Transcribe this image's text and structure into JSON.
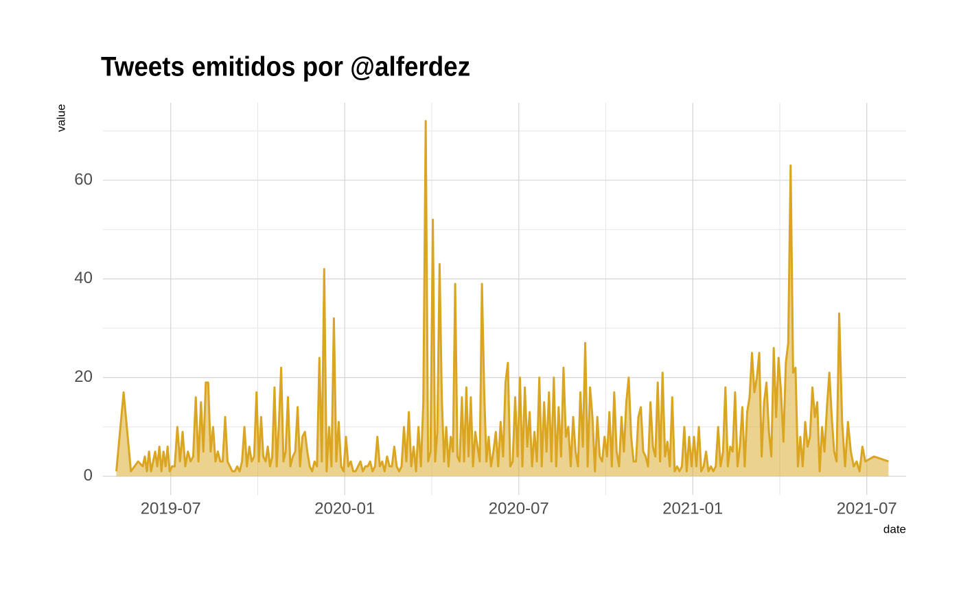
{
  "chart_data": {
    "type": "area",
    "title": "Tweets emitidos por @alferdez",
    "xlabel": "date",
    "ylabel": "value",
    "x": [
      "2019-05",
      "2019-05",
      "2019-05",
      "2019-05",
      "2019-06",
      "2019-06",
      "2019-06",
      "2019-06",
      "2019-06",
      "2019-06",
      "2019-06",
      "2019-06",
      "2019-06",
      "2019-06",
      "2019-06",
      "2019-06",
      "2019-06",
      "2019-06",
      "2019-07",
      "2019-07",
      "2019-07",
      "2019-07",
      "2019-07",
      "2019-07",
      "2019-07",
      "2019-07",
      "2019-07",
      "2019-07",
      "2019-07",
      "2019-08",
      "2019-08",
      "2019-08",
      "2019-08",
      "2019-08",
      "2019-08",
      "2019-08",
      "2019-08",
      "2019-08",
      "2019-08",
      "2019-08",
      "2019-08",
      "2019-09",
      "2019-09",
      "2019-09",
      "2019-09",
      "2019-09",
      "2019-09",
      "2019-09",
      "2019-09",
      "2019-09",
      "2019-09",
      "2019-09",
      "2019-09",
      "2019-10",
      "2019-10",
      "2019-10",
      "2019-10",
      "2019-10",
      "2019-10",
      "2019-10",
      "2019-10",
      "2019-10",
      "2019-10",
      "2019-10",
      "2019-10",
      "2019-10",
      "2019-11",
      "2019-11",
      "2019-11",
      "2019-11",
      "2019-11",
      "2019-11",
      "2019-11",
      "2019-11",
      "2019-11",
      "2019-11",
      "2019-11",
      "2019-11",
      "2019-12",
      "2019-12",
      "2019-12",
      "2019-12",
      "2019-12",
      "2019-12",
      "2019-12",
      "2019-12",
      "2019-12",
      "2019-12",
      "2019-12",
      "2019-12",
      "2020-01",
      "2020-01",
      "2020-01",
      "2020-01",
      "2020-01",
      "2020-01",
      "2020-01",
      "2020-01",
      "2020-01",
      "2020-01",
      "2020-01",
      "2020-01",
      "2020-02",
      "2020-02",
      "2020-02",
      "2020-02",
      "2020-02",
      "2020-02",
      "2020-02",
      "2020-02",
      "2020-02",
      "2020-02",
      "2020-02",
      "2020-02",
      "2020-03",
      "2020-03",
      "2020-03",
      "2020-03",
      "2020-03",
      "2020-03",
      "2020-03",
      "2020-03",
      "2020-03",
      "2020-03",
      "2020-03",
      "2020-03",
      "2020-04",
      "2020-04",
      "2020-04",
      "2020-04",
      "2020-04",
      "2020-04",
      "2020-04",
      "2020-04",
      "2020-04",
      "2020-04",
      "2020-04",
      "2020-04",
      "2020-04",
      "2020-05",
      "2020-05",
      "2020-05",
      "2020-05",
      "2020-05",
      "2020-05",
      "2020-05",
      "2020-05",
      "2020-05",
      "2020-05",
      "2020-05",
      "2020-05",
      "2020-05",
      "2020-06",
      "2020-06",
      "2020-06",
      "2020-06",
      "2020-06",
      "2020-06",
      "2020-06",
      "2020-06",
      "2020-06",
      "2020-06",
      "2020-06",
      "2020-06",
      "2020-07",
      "2020-07",
      "2020-07",
      "2020-07",
      "2020-07",
      "2020-07",
      "2020-07",
      "2020-07",
      "2020-07",
      "2020-07",
      "2020-07",
      "2020-07",
      "2020-08",
      "2020-08",
      "2020-08",
      "2020-08",
      "2020-08",
      "2020-08",
      "2020-08",
      "2020-08",
      "2020-08",
      "2020-08",
      "2020-08",
      "2020-08",
      "2020-09",
      "2020-09",
      "2020-09",
      "2020-09",
      "2020-09",
      "2020-09",
      "2020-09",
      "2020-09",
      "2020-09",
      "2020-09",
      "2020-09",
      "2020-09",
      "2020-10",
      "2020-10",
      "2020-10",
      "2020-10",
      "2020-10",
      "2020-10",
      "2020-10",
      "2020-10",
      "2020-10",
      "2020-10",
      "2020-10",
      "2020-10",
      "2020-11",
      "2020-11",
      "2020-11",
      "2020-11",
      "2020-11",
      "2020-11",
      "2020-11",
      "2020-11",
      "2020-11",
      "2020-11",
      "2020-11",
      "2020-11",
      "2020-12",
      "2020-12",
      "2020-12",
      "2020-12",
      "2020-12",
      "2020-12",
      "2020-12",
      "2020-12",
      "2020-12",
      "2020-12",
      "2020-12",
      "2020-12",
      "2021-01",
      "2021-01",
      "2021-01",
      "2021-01",
      "2021-01",
      "2021-01",
      "2021-01",
      "2021-01",
      "2021-01",
      "2021-01",
      "2021-01",
      "2021-01",
      "2021-02",
      "2021-02",
      "2021-02",
      "2021-02",
      "2021-02",
      "2021-02",
      "2021-02",
      "2021-02",
      "2021-02",
      "2021-02",
      "2021-02",
      "2021-02",
      "2021-03",
      "2021-03",
      "2021-03",
      "2021-03",
      "2021-03",
      "2021-03",
      "2021-03",
      "2021-03",
      "2021-03",
      "2021-03",
      "2021-03",
      "2021-03",
      "2021-04",
      "2021-04",
      "2021-04",
      "2021-04",
      "2021-04",
      "2021-04",
      "2021-04",
      "2021-04",
      "2021-04",
      "2021-04",
      "2021-04",
      "2021-04",
      "2021-05",
      "2021-05",
      "2021-05",
      "2021-05",
      "2021-05",
      "2021-05",
      "2021-05",
      "2021-05",
      "2021-05",
      "2021-05",
      "2021-05",
      "2021-05",
      "2021-06",
      "2021-06",
      "2021-06",
      "2021-06",
      "2021-06",
      "2021-06",
      "2021-06",
      "2021-06",
      "2021-06",
      "2021-06",
      "2021-07",
      "2021-07"
    ],
    "series": [
      {
        "name": "value",
        "color": "#DAA520",
        "values": [
          1,
          17,
          1,
          3,
          2,
          4,
          1,
          5,
          1,
          3,
          5,
          2,
          6,
          1,
          5,
          2,
          6,
          1,
          2,
          2,
          10,
          3,
          9,
          2,
          5,
          3,
          4,
          16,
          3,
          15,
          5,
          19,
          19,
          5,
          10,
          3,
          5,
          3,
          3,
          12,
          3,
          2,
          1,
          1,
          2,
          1,
          3,
          10,
          2,
          6,
          3,
          4,
          17,
          3,
          12,
          4,
          3,
          6,
          2,
          4,
          18,
          2,
          11,
          22,
          3,
          5,
          16,
          2,
          4,
          5,
          14,
          2,
          8,
          9,
          5,
          2,
          1,
          3,
          2,
          24,
          3,
          42,
          1,
          10,
          2,
          32,
          3,
          11,
          2,
          1,
          8,
          2,
          3,
          1,
          1,
          2,
          3,
          1,
          2,
          2,
          3,
          1,
          2,
          8,
          2,
          3,
          1,
          4,
          2,
          2,
          6,
          2,
          1,
          2,
          10,
          3,
          13,
          2,
          6,
          1,
          10,
          2,
          15,
          72,
          3,
          5,
          52,
          3,
          9,
          43,
          16,
          3,
          10,
          2,
          8,
          5,
          39,
          4,
          3,
          16,
          3,
          18,
          4,
          16,
          2,
          9,
          6,
          3,
          39,
          17,
          3,
          8,
          2,
          5,
          9,
          2,
          11,
          4,
          19,
          23,
          2,
          3,
          16,
          4,
          20,
          2,
          18,
          6,
          13,
          2,
          9,
          3,
          20,
          2,
          15,
          5,
          17,
          3,
          20,
          2,
          14,
          4,
          22,
          8,
          10,
          2,
          12,
          5,
          2,
          17,
          6,
          27,
          2,
          18,
          12,
          1,
          12,
          4,
          3,
          8,
          4,
          13,
          2,
          17,
          5,
          2,
          12,
          5,
          15,
          20,
          8,
          3,
          3,
          12,
          14,
          5,
          4,
          2,
          15,
          6,
          4,
          19,
          3,
          21,
          4,
          7,
          2,
          16,
          1,
          2,
          1,
          2,
          10,
          1,
          8,
          2,
          8,
          2,
          10,
          1,
          2,
          5,
          1,
          2,
          1,
          2,
          10,
          2,
          5,
          18,
          2,
          6,
          5,
          17,
          2,
          6,
          14,
          2,
          13,
          16,
          25,
          17,
          20,
          25,
          4,
          15,
          19,
          9,
          4,
          26,
          12,
          24,
          17,
          7,
          23,
          27,
          63,
          21,
          22,
          2,
          8,
          2,
          11,
          6,
          8,
          18,
          12,
          15,
          1,
          10,
          5,
          14,
          21,
          12,
          5,
          3,
          33,
          11,
          2,
          11,
          5,
          2,
          3,
          1,
          6,
          3,
          4,
          3
        ]
      }
    ],
    "xlim": [
      "2019-04",
      "2021-08"
    ],
    "xticks": [
      "2019-07",
      "2020-01",
      "2020-07",
      "2021-01",
      "2021-07"
    ],
    "ylim": [
      -3.8,
      75.7
    ],
    "yticks": [
      0,
      20,
      40,
      60
    ],
    "grid": true
  }
}
